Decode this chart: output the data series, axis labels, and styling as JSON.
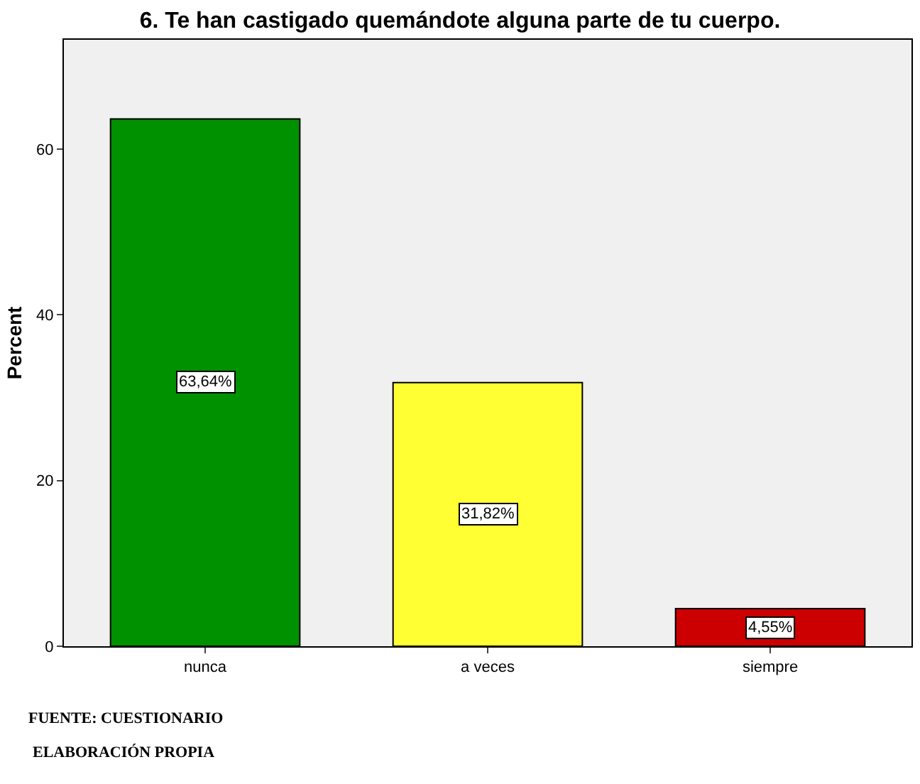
{
  "chart_data": {
    "type": "bar",
    "title": "6. Te han castigado quemándote alguna parte de tu cuerpo.",
    "ylabel": "Percent",
    "categories": [
      "nunca",
      "a veces",
      "siempre"
    ],
    "values": [
      63.64,
      31.82,
      4.55
    ],
    "colors": [
      "#009100",
      "#ffff33",
      "#cc0000"
    ],
    "value_labels": [
      "63,64%",
      "31,82%",
      "4,55%"
    ],
    "ylim": [
      0,
      73.2
    ],
    "yticks": [
      0,
      20,
      40,
      60
    ],
    "grid": false,
    "annotations": [
      "FUENTE: CUESTIONARIO",
      "ELABORACIÓN PROPIA"
    ]
  }
}
